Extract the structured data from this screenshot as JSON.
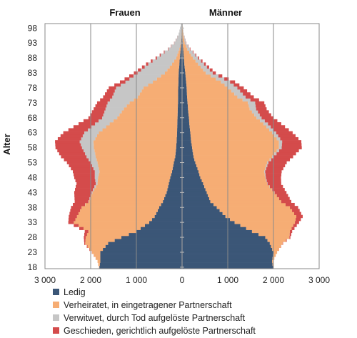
{
  "chart_data": {
    "type": "bar",
    "orientation": "horizontal",
    "stacked": true,
    "layout": "population-pyramid",
    "title": "",
    "ylabel": "Alter",
    "left_group_label": "Frauen",
    "right_group_label": "Männer",
    "xlim": [
      -3000,
      3000
    ],
    "ylim": [
      18,
      99
    ],
    "x_ticks": [
      -3000,
      -2000,
      -1000,
      0,
      1000,
      2000,
      3000
    ],
    "x_tick_labels": [
      "3 000",
      "2 000",
      "1 000",
      "0",
      "1 000",
      "2 000",
      "3 000"
    ],
    "y_ticks": [
      18,
      23,
      28,
      33,
      38,
      43,
      48,
      53,
      58,
      63,
      68,
      73,
      78,
      83,
      88,
      93,
      98
    ],
    "y_tick_labels": [
      "18",
      "23",
      "28",
      "33",
      "38",
      "43",
      "48",
      "53",
      "58",
      "63",
      "68",
      "73",
      "78",
      "83",
      "88",
      "93",
      "98"
    ],
    "grid": "vertical",
    "legend_position": "bottom",
    "series": [
      {
        "name": "Ledig",
        "color": "#3b5677"
      },
      {
        "name": "Verheiratet, in eingetragener Partnerschaft",
        "color": "#f6ad74"
      },
      {
        "name": "Verwitwet, durch Tod aufgelöste Partnerschaft",
        "color": "#c6c6c6"
      },
      {
        "name": "Geschieden, gerichtlich aufgelöste Partnerschaft",
        "color": "#d44b4b"
      }
    ],
    "age_values": [
      [
        18,
        1810,
        10,
        0,
        0,
        1990,
        5,
        0,
        0
      ],
      [
        20,
        1790,
        60,
        0,
        0,
        1970,
        20,
        0,
        0
      ],
      [
        23,
        1790,
        180,
        0,
        5,
        2000,
        80,
        0,
        0
      ],
      [
        26,
        1620,
        500,
        0,
        20,
        1920,
        280,
        0,
        10
      ],
      [
        28,
        1330,
        780,
        0,
        40,
        1820,
        530,
        0,
        20
      ],
      [
        30,
        1000,
        1050,
        0,
        80,
        1530,
        830,
        0,
        50
      ],
      [
        33,
        720,
        1650,
        0,
        120,
        1150,
        1320,
        0,
        90
      ],
      [
        35,
        600,
        1700,
        0,
        180,
        950,
        1550,
        0,
        140
      ],
      [
        38,
        500,
        1700,
        0,
        230,
        760,
        1600,
        0,
        180
      ],
      [
        40,
        420,
        1620,
        10,
        300,
        620,
        1550,
        0,
        220
      ],
      [
        43,
        340,
        1620,
        20,
        380,
        540,
        1480,
        5,
        260
      ],
      [
        46,
        290,
        1560,
        40,
        420,
        460,
        1400,
        10,
        300
      ],
      [
        48,
        260,
        1580,
        70,
        450,
        400,
        1420,
        15,
        330
      ],
      [
        50,
        220,
        1590,
        100,
        480,
        360,
        1440,
        20,
        360
      ],
      [
        53,
        180,
        1670,
        150,
        520,
        290,
        1570,
        30,
        400
      ],
      [
        55,
        150,
        1740,
        200,
        560,
        250,
        1720,
        40,
        420
      ],
      [
        58,
        130,
        1800,
        260,
        580,
        220,
        1900,
        60,
        440
      ],
      [
        60,
        120,
        1820,
        300,
        540,
        200,
        1920,
        70,
        420
      ],
      [
        63,
        110,
        1710,
        320,
        460,
        180,
        1790,
        90,
        360
      ],
      [
        66,
        105,
        1480,
        320,
        360,
        160,
        1620,
        100,
        290
      ],
      [
        68,
        100,
        1320,
        330,
        300,
        150,
        1480,
        110,
        260
      ],
      [
        71,
        95,
        1180,
        400,
        260,
        130,
        1350,
        140,
        230
      ],
      [
        73,
        90,
        1060,
        480,
        230,
        120,
        1320,
        160,
        200
      ],
      [
        75,
        88,
        880,
        560,
        200,
        110,
        1100,
        180,
        180
      ],
      [
        78,
        85,
        760,
        600,
        160,
        100,
        910,
        200,
        140
      ],
      [
        80,
        80,
        560,
        600,
        120,
        90,
        760,
        200,
        110
      ],
      [
        83,
        75,
        300,
        600,
        80,
        70,
        450,
        150,
        70
      ],
      [
        86,
        60,
        160,
        520,
        50,
        50,
        300,
        130,
        40
      ],
      [
        88,
        50,
        80,
        420,
        30,
        40,
        200,
        110,
        25
      ],
      [
        91,
        30,
        30,
        240,
        10,
        25,
        90,
        60,
        10
      ],
      [
        93,
        20,
        10,
        140,
        5,
        15,
        45,
        30,
        5
      ],
      [
        96,
        10,
        5,
        60,
        0,
        8,
        15,
        15,
        0
      ],
      [
        99,
        5,
        0,
        20,
        0,
        4,
        5,
        5,
        0
      ]
    ],
    "age_values_columns": [
      "age",
      "frauen_ledig",
      "frauen_verheiratet",
      "frauen_verwitwet",
      "frauen_geschieden",
      "maenner_ledig",
      "maenner_verheiratet",
      "maenner_verwitwet",
      "maenner_geschieden"
    ]
  }
}
